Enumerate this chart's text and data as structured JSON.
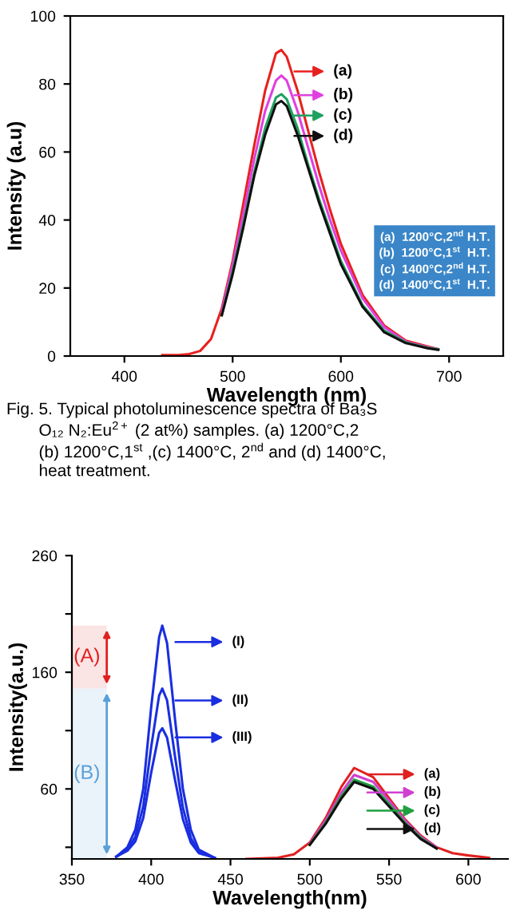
{
  "chart_data": [
    {
      "type": "line",
      "xlabel": "Wavelength (nm)",
      "ylabel": "Intensity (a.u)",
      "subtitle": "Fig. 5. Typical photoluminescence spectra of Ba₃S\n       O₁₂ N₂:Eu$^{2+}$ (2 at%) samples. (a) 1200°C,2\n       (b) 1200°C,1$^{st}$ ,(c) 1400°C, 2$^{nd}$ and (d) 1400°C,\n       heat treatment.",
      "x": [
        435,
        450,
        460,
        470,
        480,
        490,
        500,
        510,
        520,
        530,
        540,
        545,
        550,
        560,
        570,
        580,
        590,
        600,
        620,
        640,
        660,
        680,
        690
      ],
      "series": [
        {
          "name": "(a)",
          "color": "#e8201e",
          "values": [
            0.3,
            0.3,
            0.6,
            1.5,
            5,
            14,
            28,
            45,
            62,
            78,
            89,
            90,
            88,
            78,
            66,
            54,
            43,
            33,
            18,
            9,
            4.5,
            2.8,
            2
          ]
        },
        {
          "name": "(b)",
          "color": "#e040e0",
          "values": [
            null,
            null,
            null,
            null,
            null,
            13,
            27,
            42,
            58,
            72,
            81,
            82.5,
            81,
            72,
            61,
            50,
            40,
            31,
            17,
            8.5,
            4.2,
            2.6,
            2
          ]
        },
        {
          "name": "(c)",
          "color": "#20a060",
          "values": [
            null,
            null,
            null,
            null,
            null,
            12,
            25,
            39,
            54,
            67,
            76,
            77,
            75.5,
            67,
            56,
            46,
            37,
            28,
            15,
            7.5,
            4,
            2.4,
            2
          ]
        },
        {
          "name": "(d)",
          "color": "#101010",
          "values": [
            null,
            null,
            null,
            null,
            null,
            12,
            24,
            38,
            53,
            65,
            74,
            75,
            73.5,
            65,
            55,
            45,
            36,
            27,
            14.5,
            7,
            3.8,
            2.3,
            1.8
          ]
        }
      ],
      "annotations": [
        "(a)  1200°C,2$^{nd}$ H.T.",
        "(b)  1200°C,1$^{st}$  H.T.",
        "(c)  1400°C,2$^{nd}$ H.T.",
        "(d)  1400°C,1$^{st}$  H.T."
      ],
      "xlim": [
        350,
        750
      ],
      "xticks": [
        400,
        500,
        600,
        700
      ],
      "ylim": [
        0,
        100
      ],
      "yticks": [
        0,
        20,
        40,
        60,
        80,
        100
      ],
      "grid": false,
      "legend": "top right",
      "marker": "none",
      "line_style": "solid"
    },
    {
      "type": "line",
      "xlabel": "Wavelength(nm)",
      "ylabel": "Intensity(a.u.)",
      "series": [
        {
          "name": "(I)",
          "color": "#1a2ee0",
          "x": [
            378,
            385,
            390,
            395,
            400,
            405,
            407,
            410,
            415,
            420,
            425,
            430,
            440
          ],
          "values": [
            2,
            10,
            25,
            60,
            130,
            190,
            200,
            185,
            120,
            60,
            25,
            8,
            1
          ]
        },
        {
          "name": "(II)",
          "color": "#1a2ee0",
          "x": [
            378,
            385,
            390,
            395,
            400,
            405,
            407,
            410,
            415,
            420,
            425,
            430,
            440
          ],
          "values": [
            2,
            8,
            19,
            45,
            96,
            140,
            146,
            136,
            88,
            44,
            18,
            6,
            1
          ]
        },
        {
          "name": "(III)",
          "color": "#1a2ee0",
          "x": [
            378,
            385,
            390,
            395,
            400,
            405,
            407,
            410,
            415,
            420,
            425,
            430,
            440
          ],
          "values": [
            2,
            7,
            15,
            35,
            74,
            108,
            112,
            104,
            68,
            34,
            14,
            5,
            1
          ]
        },
        {
          "name": "(a)",
          "color": "#e02020",
          "x": [
            460,
            480,
            490,
            500,
            510,
            520,
            528,
            540,
            550,
            560,
            570,
            580,
            590,
            600,
            613
          ],
          "values": [
            0,
            1,
            4,
            14,
            35,
            62,
            78,
            70,
            52,
            34,
            20,
            10,
            5,
            3,
            1
          ]
        },
        {
          "name": "(b)",
          "color": "#d040d0",
          "x": [
            500,
            510,
            520,
            528,
            540,
            550,
            560,
            570,
            580
          ],
          "values": [
            13,
            33,
            57,
            72,
            66,
            50,
            33,
            19,
            10
          ]
        },
        {
          "name": "(c)",
          "color": "#20a040",
          "x": [
            500,
            510,
            520,
            528,
            540,
            550,
            560,
            570,
            580
          ],
          "values": [
            12,
            31,
            54,
            68,
            62,
            47,
            31,
            18,
            9
          ]
        },
        {
          "name": "(d)",
          "color": "#101010",
          "x": [
            500,
            510,
            520,
            528,
            540,
            550,
            560,
            570,
            580
          ],
          "values": [
            12,
            30,
            52,
            66,
            60,
            45,
            30,
            17,
            9
          ]
        }
      ],
      "bands": [
        {
          "axis": "y",
          "from": 146,
          "to": 200,
          "label": "(A)",
          "color": "#e02020"
        },
        {
          "axis": "y",
          "from": 0,
          "to": 146,
          "label": "(B)",
          "color": "#5aa0d8"
        }
      ],
      "xlim": [
        350,
        625
      ],
      "xticks": [
        350,
        400,
        450,
        500,
        550,
        600
      ],
      "ylim": [
        0,
        260
      ],
      "yticks": [
        {
          "value": 10,
          "label": null
        },
        60,
        {
          "value": 110,
          "label": null
        },
        160,
        {
          "value": 210,
          "label": null
        },
        260
      ],
      "grid": false,
      "legend": "right",
      "marker": "none",
      "line_style": "solid"
    }
  ]
}
